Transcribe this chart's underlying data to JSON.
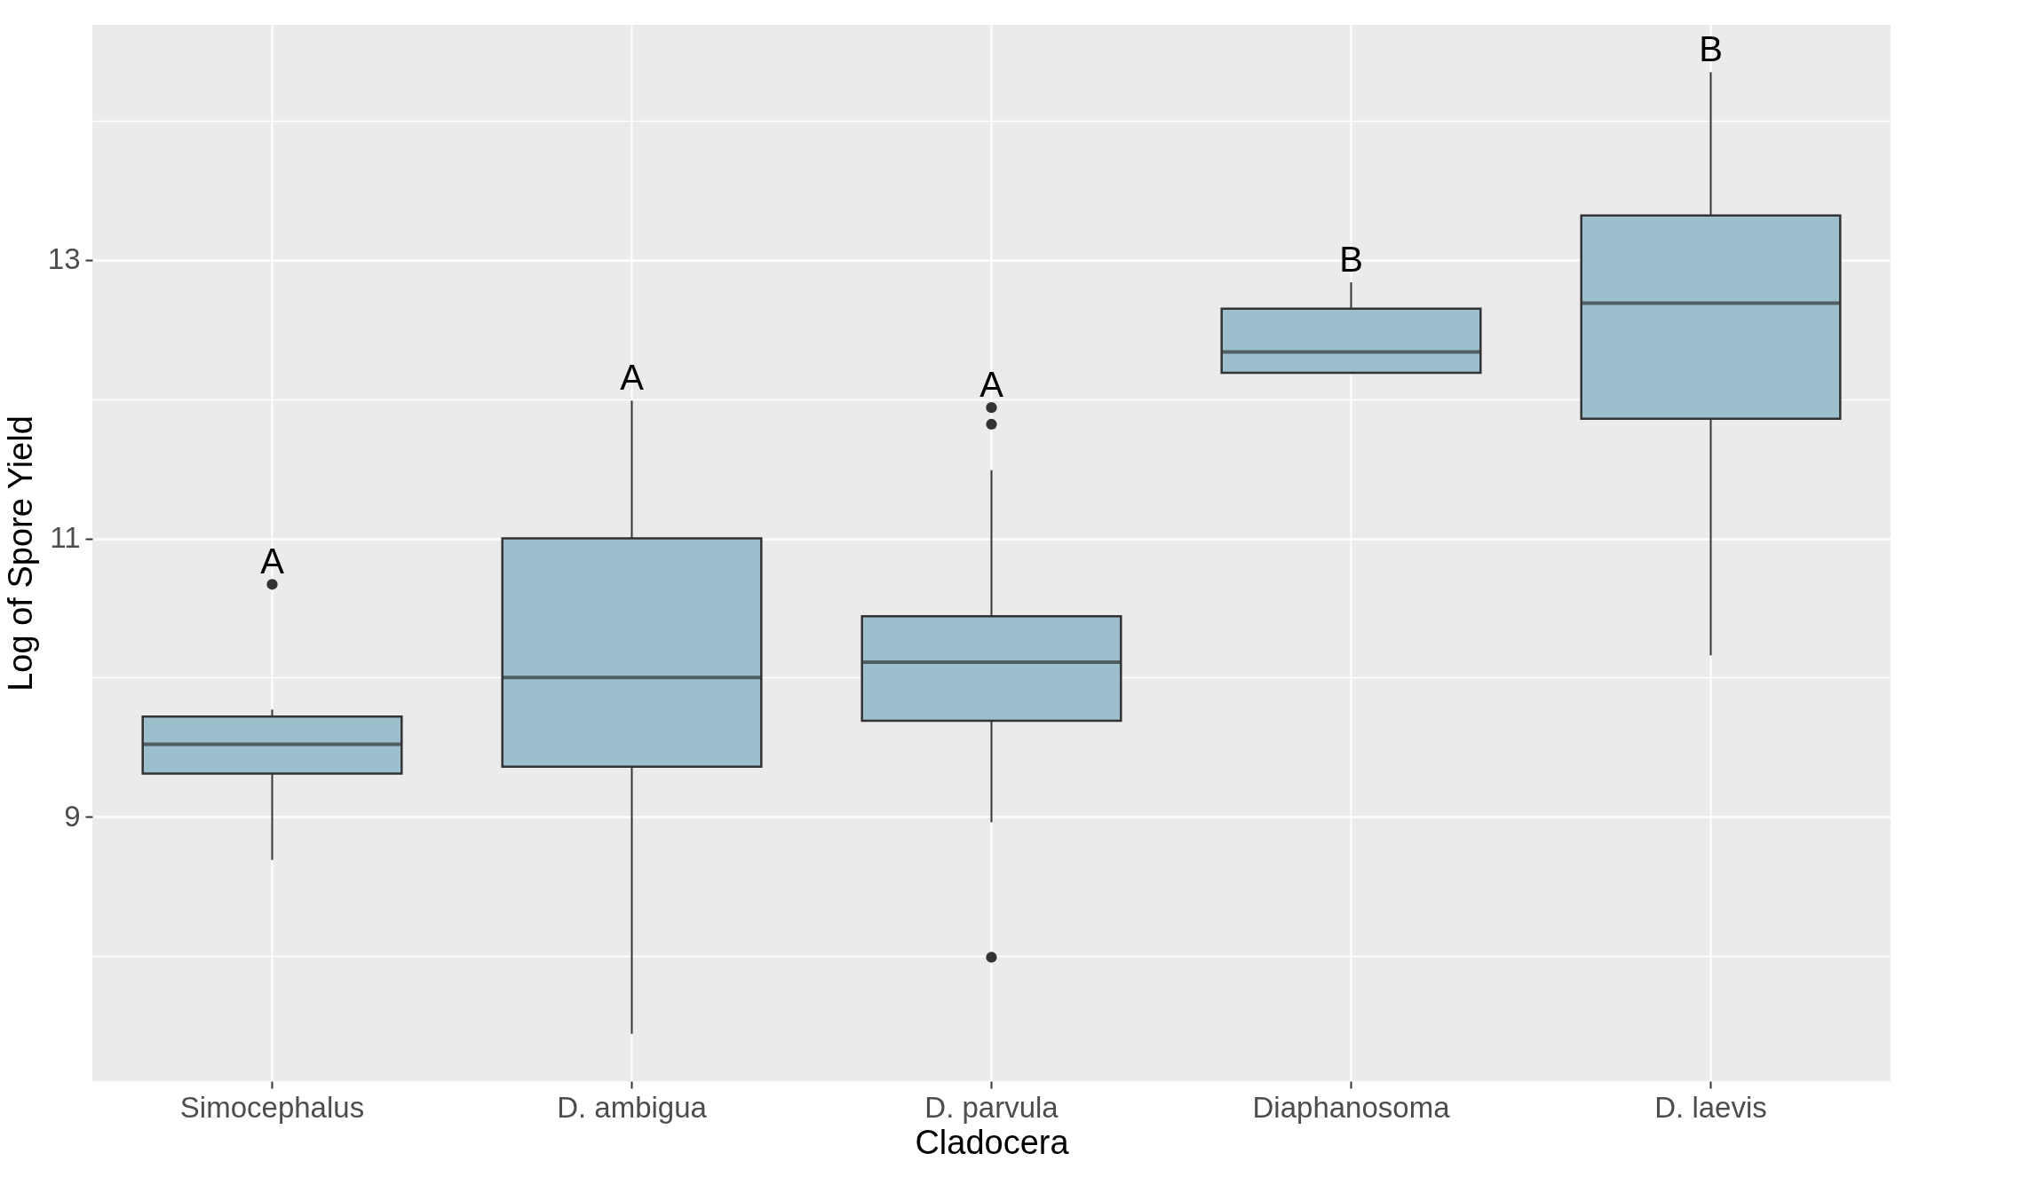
{
  "chart_data": {
    "type": "box",
    "xlabel": "Cladocera",
    "ylabel": "Log of Spore Yield",
    "categories": [
      "Simocephalus",
      "D. ambigua",
      "D. parvula",
      "Diaphanosoma",
      "D. laevis"
    ],
    "color": "#9bbfcc",
    "boxes": [
      {
        "low": 8.69,
        "q1": 9.31,
        "median": 9.52,
        "q3": 9.72,
        "high": 9.77,
        "outliers": [
          10.67
        ]
      },
      {
        "low": 7.44,
        "q1": 9.36,
        "median": 10.0,
        "q3": 11.0,
        "high": 11.99
      },
      {
        "low": 8.96,
        "q1": 9.69,
        "median": 10.11,
        "q3": 10.44,
        "high": 11.49,
        "outliers": [
          11.94,
          11.82,
          7.99
        ]
      },
      {
        "low": 12.19,
        "q1": 12.19,
        "median": 12.34,
        "q3": 12.65,
        "high": 12.84
      },
      {
        "low": 10.16,
        "q1": 11.86,
        "median": 12.69,
        "q3": 13.32,
        "high": 14.35
      }
    ],
    "ylim": [
      7.1,
      14.69
    ],
    "yticks": [
      {
        "value": 8,
        "label": null
      },
      9,
      {
        "value": 10,
        "label": null
      },
      11,
      {
        "value": 12,
        "label": null
      },
      13,
      {
        "value": 14,
        "label": null
      }
    ],
    "grid": true,
    "annotations": [
      "A",
      "A",
      "A",
      "B",
      "B"
    ]
  }
}
